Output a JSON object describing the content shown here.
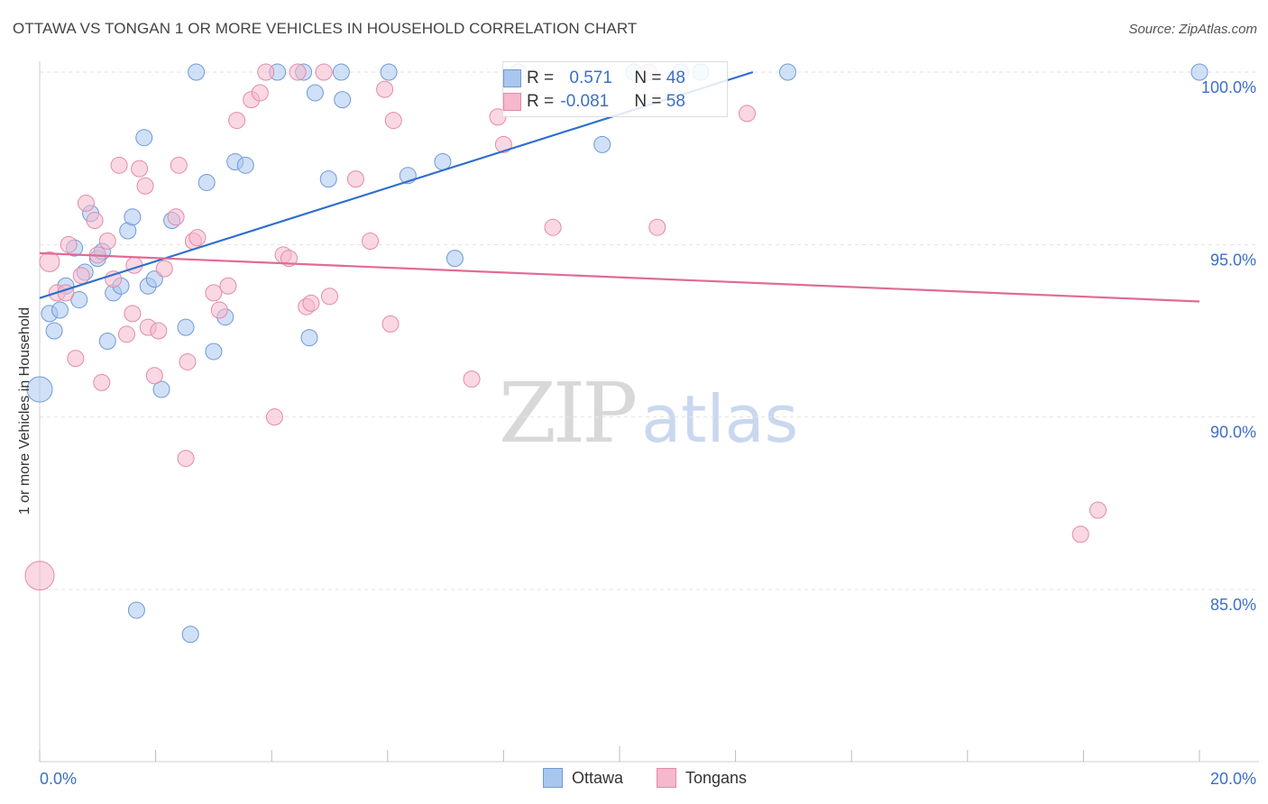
{
  "header": {
    "title": "OTTAWA VS TONGAN 1 OR MORE VEHICLES IN HOUSEHOLD CORRELATION CHART",
    "source": "Source: ZipAtlas.com"
  },
  "watermark": {
    "zip": "ZIP",
    "atlas": "atlas"
  },
  "colors": {
    "ottawa_fill": "#a9c6ef",
    "ottawa_stroke": "#6f9ad6",
    "ottawa_line": "#2f6fcc",
    "tongans_fill": "#f5b8cc",
    "tongans_stroke": "#e48aa8",
    "tongans_line": "#e06b96",
    "axis_text": "#3b6fc7",
    "grid": "#e3e3e3"
  },
  "legend": {
    "rows": [
      {
        "r_label": "R = ",
        "r_value": "0.571",
        "n_label": "N = ",
        "n_value": "48"
      },
      {
        "r_label": "R = ",
        "r_value": "-0.081",
        "n_label": "N = ",
        "n_value": "58"
      }
    ],
    "bottom": [
      "Ottawa",
      "Tongans"
    ]
  },
  "chart_data": {
    "type": "scatter",
    "title": "OTTAWA VS TONGAN 1 OR MORE VEHICLES IN HOUSEHOLD CORRELATION CHART",
    "xlabel": "",
    "ylabel": "1 or more Vehicles in Household",
    "xlim": [
      0.0,
      20.0
    ],
    "ylim": [
      80.5,
      100.5
    ],
    "x_tick_labels": [
      "0.0%",
      "20.0%"
    ],
    "y_ticks": [
      85.0,
      90.0,
      95.0,
      100.0
    ],
    "y_tick_labels": [
      "85.0%",
      "90.0%",
      "95.0%",
      "100.0%"
    ],
    "grid": true,
    "legend_position": "top-center",
    "series": [
      {
        "name": "Ottawa",
        "r": 0.571,
        "n": 48,
        "trend": {
          "x": [
            0.0,
            12.3
          ],
          "y": [
            93.45,
            100.0
          ]
        },
        "points": [
          [
            0.0,
            90.8,
            14
          ],
          [
            0.17,
            93.0,
            9
          ],
          [
            0.25,
            92.5,
            9
          ],
          [
            0.35,
            93.1,
            9
          ],
          [
            0.45,
            93.8,
            9
          ],
          [
            0.6,
            94.9,
            9
          ],
          [
            0.68,
            93.4,
            9
          ],
          [
            0.78,
            94.2,
            9
          ],
          [
            0.88,
            95.9,
            9
          ],
          [
            1.0,
            94.6,
            9
          ],
          [
            1.08,
            94.8,
            9
          ],
          [
            1.17,
            92.2,
            9
          ],
          [
            1.27,
            93.6,
            9
          ],
          [
            1.4,
            93.8,
            9
          ],
          [
            1.52,
            95.4,
            9
          ],
          [
            1.6,
            95.8,
            9
          ],
          [
            1.67,
            84.4,
            9
          ],
          [
            1.8,
            98.1,
            9
          ],
          [
            1.87,
            93.8,
            9
          ],
          [
            1.98,
            94.0,
            9
          ],
          [
            2.1,
            90.8,
            9
          ],
          [
            2.28,
            95.7,
            9
          ],
          [
            2.52,
            92.6,
            9
          ],
          [
            2.6,
            83.7,
            9
          ],
          [
            2.7,
            100.0,
            9
          ],
          [
            2.88,
            96.8,
            9
          ],
          [
            3.0,
            91.9,
            9
          ],
          [
            3.2,
            92.9,
            9
          ],
          [
            3.37,
            97.4,
            9
          ],
          [
            3.55,
            97.3,
            9
          ],
          [
            4.1,
            100.0,
            9
          ],
          [
            4.55,
            100.0,
            9
          ],
          [
            4.65,
            92.3,
            9
          ],
          [
            4.75,
            99.4,
            9
          ],
          [
            4.98,
            96.9,
            9
          ],
          [
            5.2,
            100.0,
            9
          ],
          [
            5.22,
            99.2,
            9
          ],
          [
            6.02,
            100.0,
            9
          ],
          [
            6.35,
            97.0,
            9
          ],
          [
            6.95,
            97.4,
            9
          ],
          [
            7.16,
            94.6,
            9
          ],
          [
            8.25,
            100.0,
            9
          ],
          [
            9.7,
            97.9,
            9
          ],
          [
            11.05,
            100.0,
            9
          ],
          [
            11.4,
            100.0,
            9
          ],
          [
            12.9,
            100.0,
            9
          ],
          [
            20.0,
            100.0,
            9
          ],
          [
            10.25,
            100.0,
            9
          ]
        ]
      },
      {
        "name": "Tongans",
        "r": -0.081,
        "n": 58,
        "trend": {
          "x": [
            0.0,
            20.0
          ],
          "y": [
            94.75,
            93.35
          ]
        },
        "points": [
          [
            0.0,
            85.4,
            16
          ],
          [
            0.17,
            94.5,
            11
          ],
          [
            0.3,
            93.6,
            9
          ],
          [
            0.45,
            93.6,
            9
          ],
          [
            0.5,
            95.0,
            9
          ],
          [
            0.62,
            91.7,
            9
          ],
          [
            0.72,
            94.1,
            9
          ],
          [
            0.8,
            96.2,
            9
          ],
          [
            0.95,
            95.7,
            9
          ],
          [
            1.0,
            94.7,
            9
          ],
          [
            1.07,
            91.0,
            9
          ],
          [
            1.17,
            95.1,
            9
          ],
          [
            1.27,
            94.0,
            9
          ],
          [
            1.37,
            97.3,
            9
          ],
          [
            1.5,
            92.4,
            9
          ],
          [
            1.6,
            93.0,
            9
          ],
          [
            1.63,
            94.4,
            9
          ],
          [
            1.72,
            97.2,
            9
          ],
          [
            1.82,
            96.7,
            9
          ],
          [
            1.87,
            92.6,
            9
          ],
          [
            1.98,
            91.2,
            9
          ],
          [
            2.05,
            92.5,
            9
          ],
          [
            2.15,
            94.3,
            9
          ],
          [
            2.35,
            95.8,
            9
          ],
          [
            2.4,
            97.3,
            9
          ],
          [
            2.52,
            88.8,
            9
          ],
          [
            2.55,
            91.6,
            9
          ],
          [
            2.65,
            95.1,
            9
          ],
          [
            2.72,
            95.2,
            9
          ],
          [
            3.0,
            93.6,
            9
          ],
          [
            3.1,
            93.1,
            9
          ],
          [
            3.25,
            93.8,
            9
          ],
          [
            3.4,
            98.6,
            9
          ],
          [
            3.65,
            99.2,
            9
          ],
          [
            3.8,
            99.4,
            9
          ],
          [
            3.9,
            100.0,
            9
          ],
          [
            4.05,
            90.0,
            9
          ],
          [
            4.2,
            94.7,
            9
          ],
          [
            4.3,
            94.6,
            9
          ],
          [
            4.45,
            100.0,
            9
          ],
          [
            4.6,
            93.2,
            9
          ],
          [
            4.68,
            93.3,
            9
          ],
          [
            5.0,
            93.5,
            9
          ],
          [
            5.45,
            96.9,
            9
          ],
          [
            5.7,
            95.1,
            9
          ],
          [
            5.95,
            99.5,
            9
          ],
          [
            6.05,
            92.7,
            9
          ],
          [
            6.1,
            98.6,
            9
          ],
          [
            7.45,
            91.1,
            9
          ],
          [
            7.9,
            98.7,
            9
          ],
          [
            8.0,
            97.9,
            9
          ],
          [
            8.85,
            95.5,
            9
          ],
          [
            10.65,
            95.5,
            9
          ],
          [
            12.2,
            98.8,
            9
          ],
          [
            17.95,
            86.6,
            9
          ],
          [
            18.25,
            87.3,
            9
          ],
          [
            4.9,
            100.0,
            9
          ],
          [
            10.5,
            100.0,
            9
          ]
        ]
      }
    ]
  }
}
